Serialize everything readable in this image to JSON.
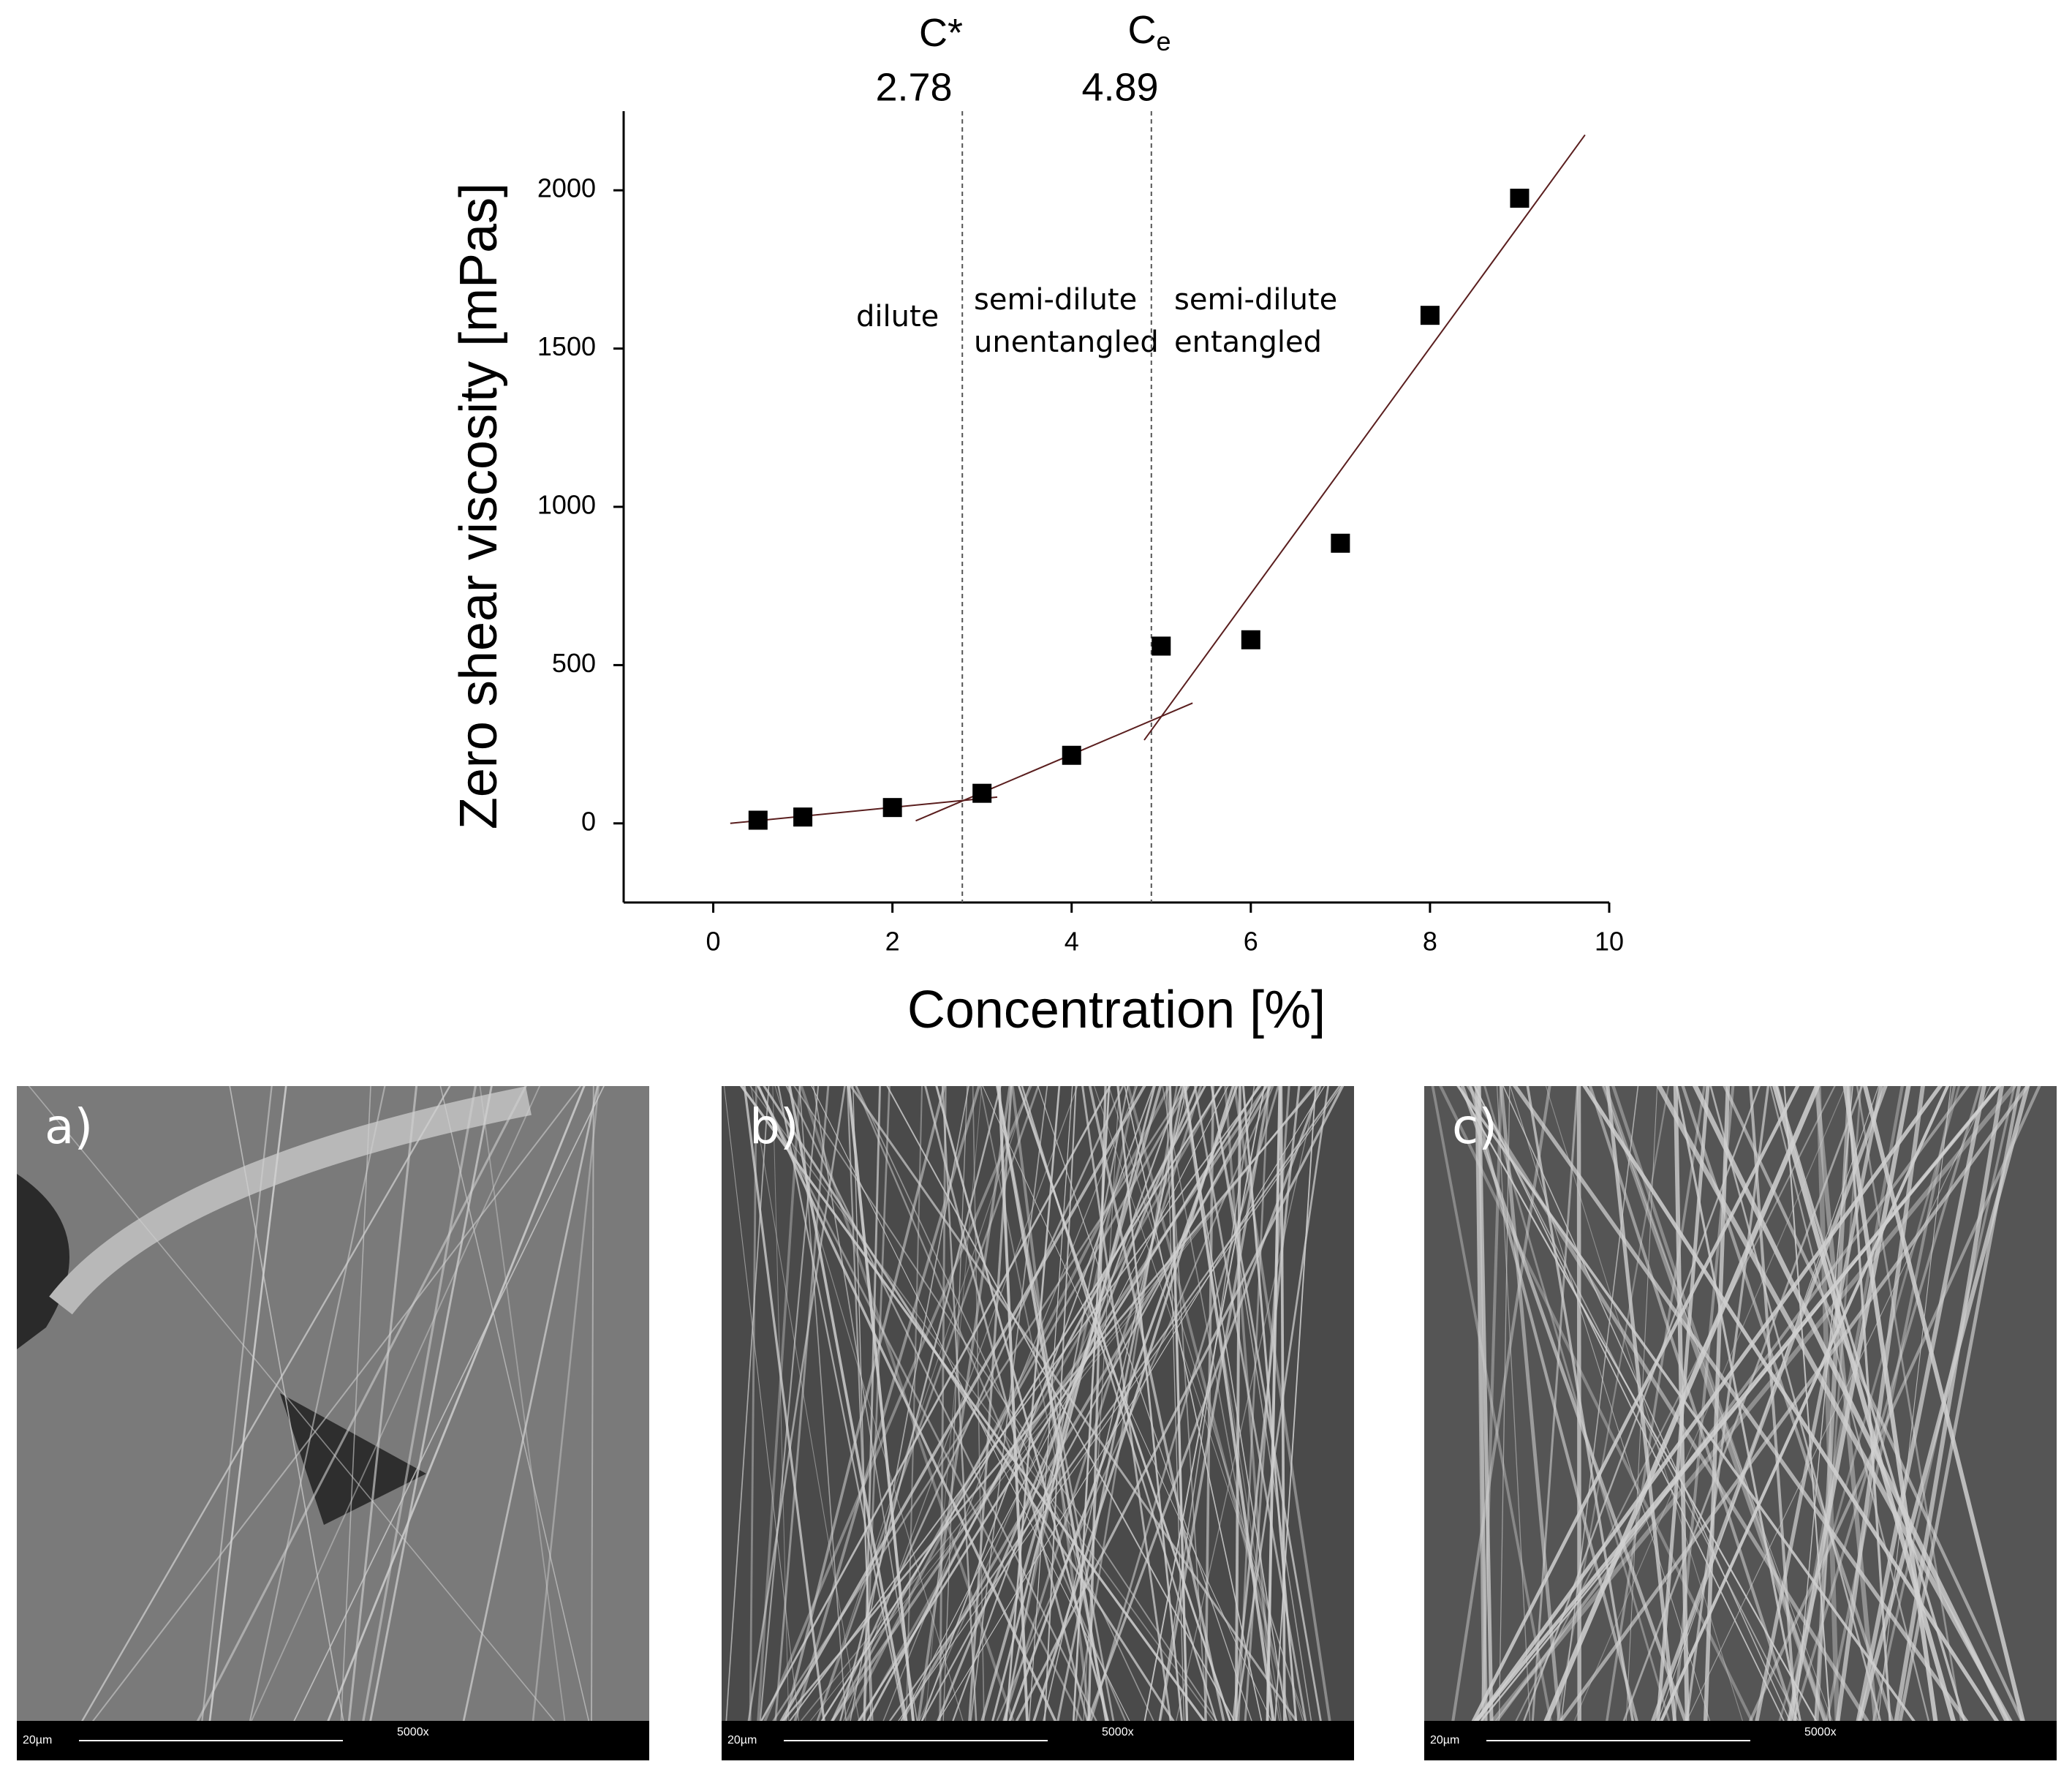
{
  "chart_data": {
    "type": "scatter",
    "x_label": "Concentration [%]",
    "y_label": "Zero shear viscosity [mPas]",
    "x": [
      0.5,
      1,
      2,
      3,
      4,
      5,
      6,
      7,
      8,
      9
    ],
    "values": [
      10,
      20,
      50,
      95,
      215,
      560,
      580,
      885,
      1605,
      1975
    ],
    "color": "#000000",
    "fit_lines": [
      {
        "x": [
          0.19,
          3.17
        ],
        "values": [
          0,
          83
        ]
      },
      {
        "x": [
          2.26,
          5.35
        ],
        "values": [
          8,
          380
        ]
      },
      {
        "x": [
          4.81,
          9.73
        ],
        "values": [
          263,
          2175
        ]
      }
    ],
    "fit_color": "#5a1e1e",
    "vlines": [
      {
        "value": 2.78,
        "label": "C*"
      },
      {
        "value": 4.89,
        "label": "C",
        "subscript": "e"
      }
    ],
    "annotations": [
      "dilute",
      "semi-dilute",
      "unentangled",
      "semi-dilute",
      "entangled"
    ],
    "xlim": [
      -1,
      10
    ],
    "xticks": [
      0,
      2,
      4,
      6,
      8,
      10
    ],
    "ylim": [
      -250,
      2250
    ],
    "yticks": [
      0,
      500,
      1000,
      1500,
      2000
    ]
  },
  "panels": [
    {
      "label": "a)",
      "scale_bar": "20µm",
      "magnification": "5000x"
    },
    {
      "label": "b)",
      "scale_bar": "20µm",
      "magnification": "5000x"
    },
    {
      "label": "c)",
      "scale_bar": "20µm",
      "magnification": "5000x"
    }
  ]
}
